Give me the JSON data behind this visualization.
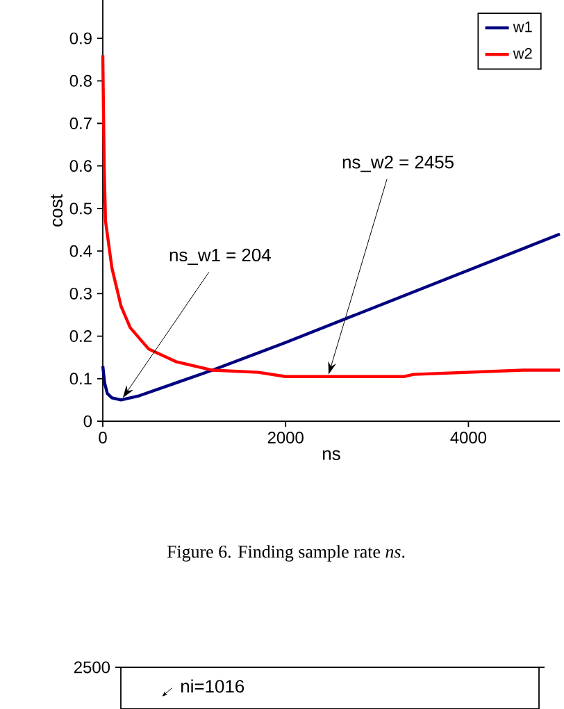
{
  "chart_data": [
    {
      "type": "line",
      "xlabel": "ns",
      "ylabel": "cost",
      "xlim": [
        0,
        5000
      ],
      "ylim": [
        0,
        0.99
      ],
      "xticks": [
        0,
        2000,
        4000
      ],
      "yticks": [
        0,
        0.1,
        0.2,
        0.3,
        0.4,
        0.5,
        0.6,
        0.7,
        0.8,
        0.9
      ],
      "legend": "top right",
      "series": [
        {
          "name": "w1",
          "color": "#000080",
          "x": [
            0,
            20,
            50,
            100,
            200,
            400,
            800,
            1200,
            2000,
            3000,
            4000,
            5000
          ],
          "values": [
            0.13,
            0.09,
            0.065,
            0.055,
            0.05,
            0.06,
            0.09,
            0.12,
            0.185,
            0.27,
            0.355,
            0.44
          ]
        },
        {
          "name": "w2",
          "color": "#ff0000",
          "x": [
            0,
            15,
            30,
            100,
            200,
            300,
            500,
            800,
            1200,
            1700,
            2000,
            3300,
            3400,
            4600,
            5000
          ],
          "values": [
            0.86,
            0.6,
            0.47,
            0.36,
            0.27,
            0.22,
            0.17,
            0.14,
            0.12,
            0.115,
            0.105,
            0.105,
            0.11,
            0.12,
            0.12
          ]
        }
      ],
      "annotations": [
        {
          "text": "ns_w1 = 204",
          "x": 204,
          "y": 0.05
        },
        {
          "text": "ns_w2 = 2455",
          "x": 2455,
          "y": 0.105
        },
        "Figure 6. Finding sample rate *ns*."
      ]
    },
    {
      "type": "other",
      "annotations": [
        "2500",
        "ni=1016"
      ]
    }
  ]
}
